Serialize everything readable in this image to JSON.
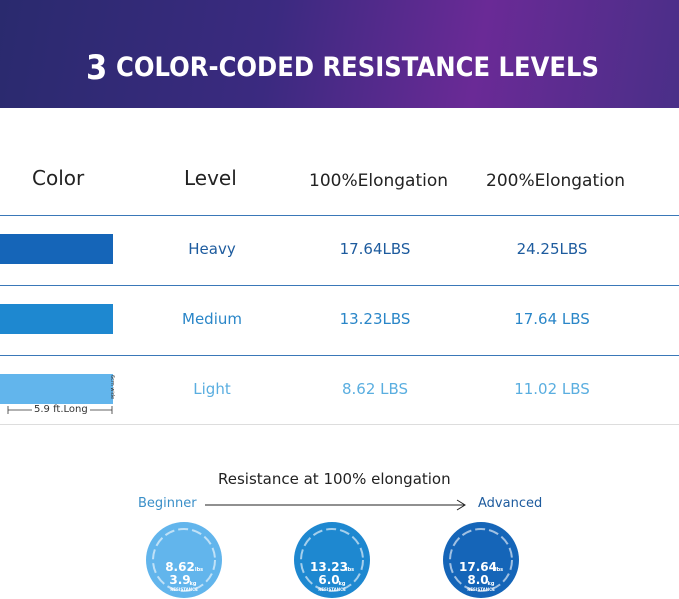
{
  "header": {
    "number": "3",
    "title": "COLOR-CODED RESISTANCE LEVELS"
  },
  "table": {
    "columns": [
      "Color",
      "Level",
      "100%Elongation",
      "200%Elongation"
    ],
    "rows": [
      [
        "Heavy",
        "17.64LBS",
        "24.25LBS"
      ],
      [
        "Medium",
        "13.23LBS",
        "17.64 LBS"
      ],
      [
        "Light",
        "8.62 LBS",
        "11.02 LBS"
      ]
    ]
  },
  "annotations": {
    "length": "5.9 ft.Long",
    "width": "6cm wide"
  },
  "scale": {
    "title": "Resistance at 100% elongation",
    "start": "Beginner",
    "end": "Advanced",
    "levels": [
      {
        "lbs": "8.62",
        "lbs_unit": "lbs",
        "kg": "3.9",
        "kg_unit": "kg",
        "label": "RESISTANCE"
      },
      {
        "lbs": "13.23",
        "lbs_unit": "lbs",
        "kg": "6.0",
        "kg_unit": "kg",
        "label": "RESISTANCE"
      },
      {
        "lbs": "17.64",
        "lbs_unit": "lbs",
        "kg": "8.0",
        "kg_unit": "kg",
        "label": "RESISTANCE"
      }
    ]
  }
}
